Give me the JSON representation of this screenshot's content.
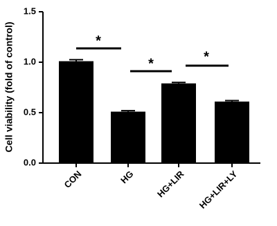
{
  "chart_data": {
    "type": "bar",
    "y_label": "Cell viability (fold of control)",
    "categories": [
      "CON",
      "HG",
      "HG+LIR",
      "HG+LIR+LY"
    ],
    "values": [
      1.01,
      0.51,
      0.79,
      0.61
    ],
    "errors": [
      0.015,
      0.01,
      0.01,
      0.01
    ],
    "color": "#000000",
    "ylim": [
      0,
      1.5
    ],
    "yticks": [
      {
        "value": 0,
        "label": "0.0"
      },
      0.5,
      {
        "value": 1,
        "label": "1.0"
      },
      1.5
    ],
    "annotations": [
      "*",
      "*",
      "*"
    ]
  }
}
